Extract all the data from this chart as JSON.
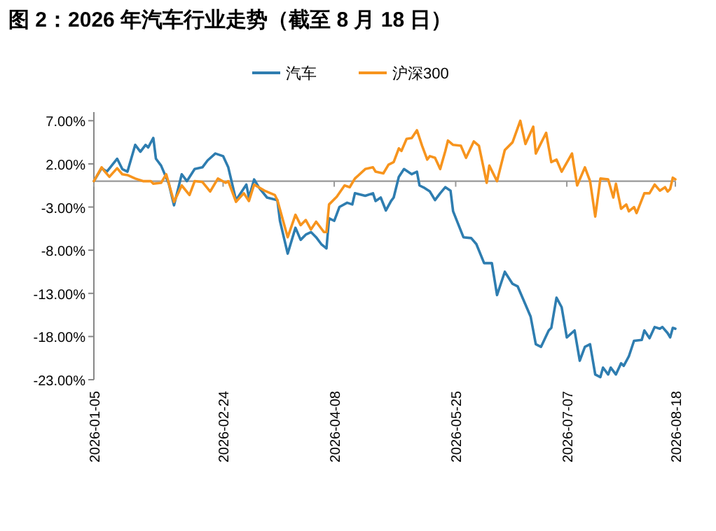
{
  "chart_data": {
    "type": "line",
    "title": "图 2：2026 年汽车行业走势（截至 8 月 18 日）",
    "legend": "top",
    "grid": false,
    "line_style": "solid",
    "xlim": [
      "2026-01-05",
      "2026-08-18"
    ],
    "xticks": [
      "2026-01-05",
      "2026-02-24",
      "2026-04-08",
      "2026-05-25",
      "2026-07-07",
      "2026-08-18"
    ],
    "ylim": [
      -23,
      8
    ],
    "yticks": [
      {
        "value": 7,
        "label": "7.00%"
      },
      {
        "value": 2,
        "label": "2.00%"
      },
      {
        "value": -3,
        "label": "-3.00%"
      },
      {
        "value": -8,
        "label": "-8.00%"
      },
      {
        "value": -13,
        "label": "-13.00%"
      },
      {
        "value": -18,
        "label": "-18.00%"
      },
      {
        "value": -23,
        "label": "-23.00%"
      }
    ],
    "series": [
      {
        "name": "汽车",
        "color": "#2e7db0",
        "x": [
          "2026-01-05",
          "2026-01-08",
          "2026-01-10",
          "2026-01-14",
          "2026-01-16",
          "2026-01-18",
          "2026-01-21",
          "2026-01-23",
          "2026-01-25",
          "2026-01-26",
          "2026-01-28",
          "2026-01-29",
          "2026-01-31",
          "2026-02-03",
          "2026-02-05",
          "2026-02-08",
          "2026-02-10",
          "2026-02-13",
          "2026-02-16",
          "2026-02-18",
          "2026-02-21",
          "2026-02-24",
          "2026-02-26",
          "2026-03-01",
          "2026-03-05",
          "2026-03-06",
          "2026-03-08",
          "2026-03-10",
          "2026-03-13",
          "2026-03-17",
          "2026-03-18",
          "2026-03-21",
          "2026-03-24",
          "2026-03-26",
          "2026-03-28",
          "2026-03-30",
          "2026-04-01",
          "2026-04-03",
          "2026-04-05",
          "2026-04-06",
          "2026-04-08",
          "2026-04-10",
          "2026-04-13",
          "2026-04-15",
          "2026-04-16",
          "2026-04-20",
          "2026-04-23",
          "2026-04-24",
          "2026-04-26",
          "2026-04-28",
          "2026-04-30",
          "2026-05-01",
          "2026-05-03",
          "2026-05-05",
          "2026-05-08",
          "2026-05-10",
          "2026-05-11",
          "2026-05-13",
          "2026-05-15",
          "2026-05-17",
          "2026-05-19",
          "2026-05-21",
          "2026-05-23",
          "2026-05-24",
          "2026-05-28",
          "2026-05-31",
          "2026-06-02",
          "2026-06-05",
          "2026-06-08",
          "2026-06-10",
          "2026-06-13",
          "2026-06-16",
          "2026-06-18",
          "2026-06-21",
          "2026-06-23",
          "2026-06-25",
          "2026-06-27",
          "2026-06-30",
          "2026-07-01",
          "2026-07-03",
          "2026-07-05",
          "2026-07-07",
          "2026-07-10",
          "2026-07-12",
          "2026-07-14",
          "2026-07-16",
          "2026-07-18",
          "2026-07-20",
          "2026-07-21",
          "2026-07-23",
          "2026-07-24",
          "2026-07-26",
          "2026-07-28",
          "2026-07-29",
          "2026-07-31",
          "2026-08-02",
          "2026-08-05",
          "2026-08-06",
          "2026-08-08",
          "2026-08-10",
          "2026-08-12",
          "2026-08-13",
          "2026-08-15",
          "2026-08-16",
          "2026-08-17",
          "2026-08-18"
        ],
        "values": [
          0,
          1.5,
          1.1,
          2.6,
          1.4,
          1.1,
          4.2,
          3.4,
          4.2,
          3.9,
          5.0,
          2.6,
          1.8,
          -0.3,
          -2.8,
          0.8,
          0,
          1.4,
          1.6,
          2.4,
          3.2,
          2.9,
          1.6,
          -2.2,
          -0.4,
          -1.9,
          0.2,
          -0.8,
          -1.9,
          -2.2,
          -4.6,
          -8.4,
          -5.4,
          -6.8,
          -6.2,
          -5.9,
          -6.5,
          -7.3,
          -7.8,
          -4.3,
          -4.6,
          -3.0,
          -2.5,
          -2.7,
          -1.4,
          -1.7,
          -1.4,
          -2.3,
          -1.9,
          -3.4,
          -2.3,
          -1.9,
          0.5,
          1.4,
          0.8,
          1.1,
          -0.5,
          -0.8,
          -1.2,
          -2.2,
          -1.4,
          -0.7,
          -1.1,
          -3.5,
          -6.5,
          -6.6,
          -7.3,
          -9.5,
          -9.5,
          -13.2,
          -10.5,
          -11.9,
          -12.2,
          -14.3,
          -15.7,
          -18.9,
          -19.2,
          -17.3,
          -17.0,
          -13.5,
          -14.6,
          -18.1,
          -17.3,
          -20.8,
          -19.2,
          -18.9,
          -22.4,
          -22.7,
          -21.6,
          -22.4,
          -21.6,
          -22.4,
          -21.1,
          -21.4,
          -20.3,
          -18.5,
          -18.4,
          -17.3,
          -18.2,
          -16.9,
          -17.1,
          -16.9,
          -17.6,
          -18.1,
          -17.0,
          -17.1
        ]
      },
      {
        "name": "沪深300",
        "color": "#f7941d",
        "x": [
          "2026-01-05",
          "2026-01-08",
          "2026-01-09",
          "2026-01-11",
          "2026-01-14",
          "2026-01-16",
          "2026-01-18",
          "2026-01-21",
          "2026-01-24",
          "2026-01-27",
          "2026-01-28",
          "2026-01-31",
          "2026-02-02",
          "2026-02-05",
          "2026-02-08",
          "2026-02-11",
          "2026-02-13",
          "2026-02-16",
          "2026-02-19",
          "2026-02-22",
          "2026-02-25",
          "2026-02-26",
          "2026-03-01",
          "2026-03-04",
          "2026-03-06",
          "2026-03-08",
          "2026-03-12",
          "2026-03-16",
          "2026-03-17",
          "2026-03-21",
          "2026-03-24",
          "2026-03-26",
          "2026-03-28",
          "2026-03-30",
          "2026-04-01",
          "2026-04-04",
          "2026-04-05",
          "2026-04-06",
          "2026-04-09",
          "2026-04-12",
          "2026-04-14",
          "2026-04-16",
          "2026-04-20",
          "2026-04-23",
          "2026-04-24",
          "2026-04-27",
          "2026-04-29",
          "2026-05-01",
          "2026-05-03",
          "2026-05-04",
          "2026-05-06",
          "2026-05-08",
          "2026-05-10",
          "2026-05-12",
          "2026-05-14",
          "2026-05-15",
          "2026-05-17",
          "2026-05-19",
          "2026-05-21",
          "2026-05-22",
          "2026-05-24",
          "2026-05-27",
          "2026-05-29",
          "2026-06-01",
          "2026-06-03",
          "2026-06-06",
          "2026-06-07",
          "2026-06-10",
          "2026-06-13",
          "2026-06-16",
          "2026-06-19",
          "2026-06-21",
          "2026-06-24",
          "2026-06-25",
          "2026-06-29",
          "2026-07-01",
          "2026-07-03",
          "2026-07-05",
          "2026-07-09",
          "2026-07-11",
          "2026-07-14",
          "2026-07-16",
          "2026-07-18",
          "2026-07-20",
          "2026-07-23",
          "2026-07-25",
          "2026-07-26",
          "2026-07-28",
          "2026-07-30",
          "2026-07-31",
          "2026-08-02",
          "2026-08-03",
          "2026-08-06",
          "2026-08-08",
          "2026-08-10",
          "2026-08-12",
          "2026-08-14",
          "2026-08-15",
          "2026-08-16",
          "2026-08-17",
          "2026-08-18"
        ],
        "values": [
          0,
          1.6,
          1.2,
          0.5,
          1.5,
          0.8,
          0.7,
          0.3,
          0,
          0,
          -0.3,
          -0.2,
          0.8,
          -2.4,
          -0.5,
          -1.6,
          0,
          -0.1,
          -1.2,
          0.3,
          -0.2,
          0,
          -2.4,
          -1.4,
          -2.3,
          -0.4,
          -1.1,
          -1.6,
          -2.2,
          -6.5,
          -3.9,
          -5.1,
          -4.5,
          -5.6,
          -4.7,
          -5.9,
          -5.9,
          -2.7,
          -1.8,
          -0.5,
          -0.7,
          0.3,
          1.4,
          1.6,
          1.1,
          0.9,
          1.9,
          2.2,
          3.8,
          3.5,
          4.9,
          5.0,
          5.9,
          4.1,
          2.5,
          2.9,
          2.7,
          1.4,
          3.5,
          4.7,
          4.2,
          4.1,
          2.7,
          4.6,
          4.1,
          -0.2,
          1.8,
          0,
          3.6,
          4.5,
          7.0,
          4.3,
          6.3,
          3.2,
          5.6,
          2.2,
          2.5,
          1.1,
          3.2,
          -0.5,
          1.6,
          0,
          -4.1,
          0.3,
          0.2,
          -1.9,
          -0.3,
          -3.2,
          -2.7,
          -3.5,
          -3.0,
          -3.7,
          -1.4,
          -1.4,
          -0.4,
          -1.1,
          -0.7,
          -1.2,
          -0.9,
          0.4,
          0.2
        ]
      }
    ]
  }
}
